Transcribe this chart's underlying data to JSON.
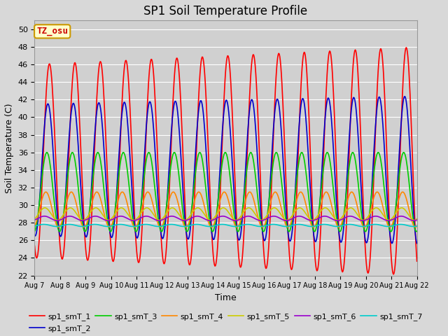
{
  "title": "SP1 Soil Temperature Profile",
  "xlabel": "Time",
  "ylabel": "Soil Temperature (C)",
  "ylim": [
    22,
    51
  ],
  "xtick_labels": [
    "Aug 7",
    "Aug 8",
    "Aug 9",
    "Aug 10",
    "Aug 11",
    "Aug 12",
    "Aug 13",
    "Aug 14",
    "Aug 15",
    "Aug 16",
    "Aug 17",
    "Aug 18",
    "Aug 19",
    "Aug 20",
    "Aug 21",
    "Aug 22"
  ],
  "annotation_text": "TZ_osu",
  "annotation_color": "#cc0000",
  "annotation_bg": "#ffffcc",
  "annotation_border": "#cc9900",
  "series": [
    {
      "name": "sp1_smT_1",
      "color": "#ff0000",
      "base": 35.0,
      "amp": 11.0,
      "phase_shift": 0.0
    },
    {
      "name": "sp1_smT_2",
      "color": "#0000cc",
      "base": 34.0,
      "amp": 7.5,
      "phase_shift": 0.06
    },
    {
      "name": "sp1_smT_3",
      "color": "#00cc00",
      "base": 31.5,
      "amp": 4.5,
      "phase_shift": 0.1
    },
    {
      "name": "sp1_smT_4",
      "color": "#ff8800",
      "base": 29.5,
      "amp": 2.0,
      "phase_shift": 0.14
    },
    {
      "name": "sp1_smT_5",
      "color": "#cccc00",
      "base": 29.0,
      "amp": 0.7,
      "phase_shift": 0.18
    },
    {
      "name": "sp1_smT_6",
      "color": "#9900cc",
      "base": 28.5,
      "amp": 0.25,
      "phase_shift": 0.2
    },
    {
      "name": "sp1_smT_7",
      "color": "#00cccc",
      "base": 27.7,
      "amp": 0.12,
      "phase_shift": 0.22
    }
  ],
  "linewidth": 1.2,
  "legend_fontsize": 8,
  "title_fontsize": 12
}
